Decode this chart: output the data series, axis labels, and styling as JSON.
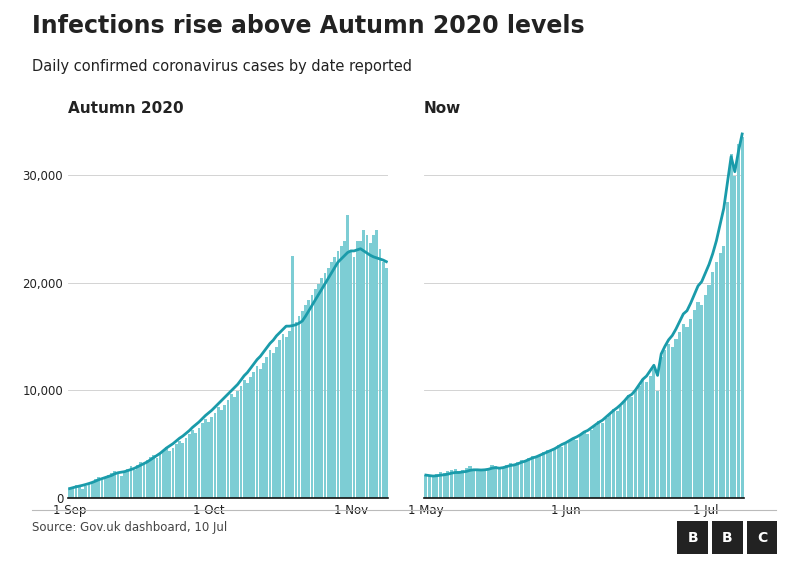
{
  "title": "Infections rise above Autumn 2020 levels",
  "subtitle": "Daily confirmed coronavirus cases by date reported",
  "source": "Source: Gov.uk dashboard, 10 Jul",
  "panel1_label": "Autumn 2020",
  "panel2_label": "Now",
  "bar_color": "#7dcdd4",
  "line_color": "#1a9baa",
  "background_color": "#ffffff",
  "text_color": "#222222",
  "grid_color": "#cccccc",
  "ylim": [
    0,
    35000
  ],
  "yticks": [
    0,
    10000,
    20000,
    30000
  ],
  "ytick_labels": [
    "0",
    "10,000",
    "20,000",
    "30,000"
  ],
  "panel1_xtick_labels": [
    "1 Sep",
    "1 Oct",
    "1 Nov"
  ],
  "panel2_xtick_labels": [
    "1 May",
    "1 Jun",
    "1 Jul"
  ],
  "autumn_bars": [
    900,
    1050,
    1250,
    1000,
    850,
    1150,
    1350,
    1550,
    1750,
    1950,
    1650,
    1850,
    2150,
    2350,
    2550,
    2250,
    2050,
    2450,
    2750,
    2950,
    2650,
    3050,
    3350,
    3150,
    3550,
    3850,
    4050,
    3750,
    4150,
    4450,
    4750,
    4350,
    4650,
    5050,
    5350,
    5150,
    5550,
    5950,
    6350,
    6050,
    6550,
    6950,
    7350,
    7050,
    7550,
    7950,
    8450,
    8150,
    8650,
    9150,
    9650,
    9350,
    9950,
    10450,
    10950,
    10650,
    11250,
    11750,
    12250,
    11950,
    12550,
    13150,
    13750,
    13450,
    14050,
    14650,
    15250,
    14950,
    15550,
    22500,
    16400,
    16900,
    17400,
    17900,
    18400,
    18900,
    19400,
    19900,
    20400,
    20900,
    21400,
    21900,
    22400,
    22900,
    23400,
    23900,
    26300,
    22900,
    22400,
    23900,
    23900,
    24900,
    24400,
    23700,
    24400,
    24900,
    23100,
    21900,
    21400
  ],
  "now_bars": [
    2150,
    2050,
    1950,
    2250,
    2450,
    2350,
    2550,
    2650,
    2750,
    2550,
    2650,
    2850,
    2950,
    2750,
    2650,
    2550,
    2750,
    2850,
    3050,
    2950,
    2750,
    2850,
    3050,
    3250,
    3150,
    3350,
    3550,
    3450,
    3750,
    3950,
    3850,
    4050,
    4250,
    4450,
    4350,
    4650,
    4950,
    4750,
    5050,
    5350,
    5550,
    5450,
    5850,
    6150,
    5950,
    6350,
    6750,
    7150,
    6950,
    7450,
    7850,
    8250,
    8050,
    8550,
    9050,
    9550,
    9350,
    9950,
    10450,
    11050,
    10750,
    11350,
    11950,
    9950,
    13150,
    13750,
    14350,
    14050,
    14750,
    15450,
    16150,
    15850,
    16650,
    17450,
    18250,
    17950,
    18850,
    19750,
    20950,
    21950,
    22750,
    23450,
    27450,
    31900,
    29900,
    32900,
    33500
  ],
  "autumn_smooth": [
    900,
    980,
    1060,
    1130,
    1200,
    1280,
    1370,
    1470,
    1590,
    1720,
    1820,
    1920,
    2020,
    2120,
    2270,
    2370,
    2420,
    2470,
    2570,
    2670,
    2770,
    2920,
    3070,
    3220,
    3370,
    3570,
    3770,
    3970,
    4170,
    4420,
    4670,
    4870,
    5070,
    5320,
    5570,
    5770,
    6020,
    6270,
    6570,
    6820,
    7070,
    7370,
    7670,
    7920,
    8170,
    8470,
    8770,
    9070,
    9370,
    9670,
    9970,
    10270,
    10570,
    10970,
    11370,
    11670,
    12070,
    12470,
    12870,
    13170,
    13570,
    13970,
    14370,
    14670,
    15070,
    15370,
    15670,
    15970,
    15970,
    16020,
    16100,
    16250,
    16450,
    16900,
    17400,
    17900,
    18400,
    18900,
    19400,
    19900,
    20400,
    20900,
    21400,
    21900,
    22200,
    22500,
    22800,
    22950,
    22950,
    23050,
    23150,
    22950,
    22750,
    22550,
    22400,
    22300,
    22200,
    22100,
    21950
  ],
  "now_smooth": [
    2150,
    2100,
    2060,
    2090,
    2140,
    2180,
    2240,
    2330,
    2390,
    2390,
    2440,
    2490,
    2590,
    2640,
    2640,
    2620,
    2640,
    2690,
    2790,
    2840,
    2790,
    2840,
    2940,
    3040,
    3090,
    3190,
    3340,
    3440,
    3590,
    3740,
    3840,
    3990,
    4140,
    4290,
    4440,
    4590,
    4790,
    4990,
    5140,
    5340,
    5540,
    5690,
    5890,
    6140,
    6290,
    6540,
    6790,
    7040,
    7240,
    7540,
    7840,
    8140,
    8390,
    8690,
    9040,
    9440,
    9640,
    10040,
    10540,
    11040,
    11340,
    11840,
    12340,
    11400,
    13400,
    14100,
    14700,
    15100,
    15700,
    16400,
    17100,
    17400,
    18100,
    18900,
    19700,
    20100,
    20900,
    21700,
    22700,
    23900,
    25400,
    26900,
    29300,
    31700,
    30300,
    32200,
    33800
  ]
}
